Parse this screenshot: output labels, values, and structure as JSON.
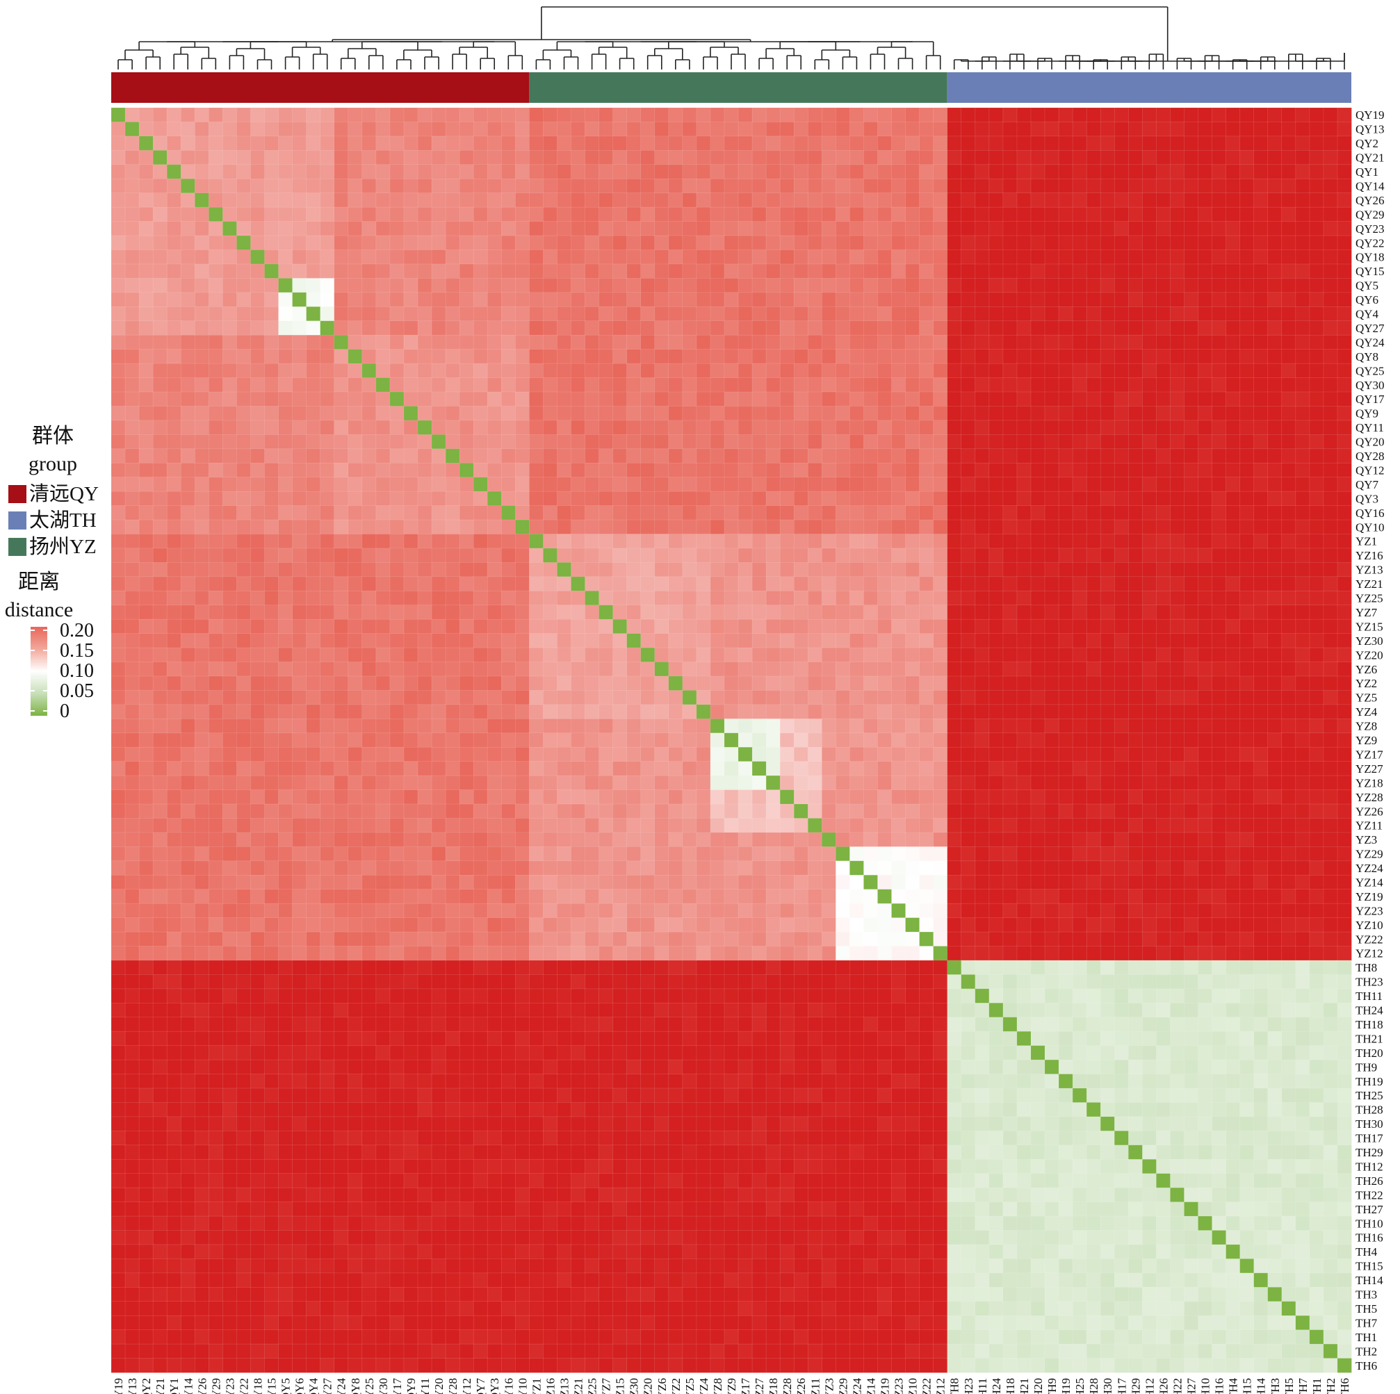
{
  "chart_data": {
    "type": "heatmap",
    "labels": [
      "QY19",
      "QY13",
      "QY2",
      "QY21",
      "QY1",
      "QY14",
      "QY26",
      "QY29",
      "QY23",
      "QY22",
      "QY18",
      "QY15",
      "QY5",
      "QY6",
      "QY4",
      "QY27",
      "QY24",
      "QY8",
      "QY25",
      "QY30",
      "QY17",
      "QY9",
      "QY11",
      "QY20",
      "QY28",
      "QY12",
      "QY7",
      "QY3",
      "QY16",
      "QY10",
      "YZ1",
      "YZ16",
      "YZ13",
      "YZ21",
      "YZ25",
      "YZ7",
      "YZ15",
      "YZ30",
      "YZ20",
      "YZ6",
      "YZ2",
      "YZ5",
      "YZ4",
      "YZ8",
      "YZ9",
      "YZ17",
      "YZ27",
      "YZ18",
      "YZ28",
      "YZ26",
      "YZ11",
      "YZ3",
      "YZ29",
      "YZ24",
      "YZ14",
      "YZ19",
      "YZ23",
      "YZ10",
      "YZ22",
      "YZ12",
      "TH8",
      "TH23",
      "TH11",
      "TH24",
      "TH18",
      "TH21",
      "TH20",
      "TH9",
      "TH19",
      "TH25",
      "TH28",
      "TH30",
      "TH17",
      "TH29",
      "TH12",
      "TH26",
      "TH22",
      "TH27",
      "TH10",
      "TH16",
      "TH4",
      "TH15",
      "TH14",
      "TH3",
      "TH5",
      "TH7",
      "TH1",
      "TH2",
      "TH6"
    ],
    "groups": [
      {
        "name": "清远QY",
        "color": "#a50f15",
        "count": 30
      },
      {
        "name": "扬州YZ",
        "color": "#45785a",
        "count": 30
      },
      {
        "name": "太湖TH",
        "color": "#6a7fb5",
        "count": 29
      }
    ],
    "values_summary": {
      "diagonal": 0,
      "QY_QY": 0.18,
      "YZ_YZ": 0.17,
      "TH_TH": 0.06,
      "QY_YZ": 0.19,
      "QY_TH": 0.25,
      "YZ_TH": 0.25,
      "QY5_QY6_QY4_QY27": 0.09,
      "YZ29_to_YZ12": 0.1,
      "YZ8_to_YZ18": 0.08
    },
    "colorbar": {
      "ticks": [
        0.2,
        0.15,
        0.1,
        0.05,
        0
      ],
      "tick_labels": [
        "0.20",
        "0.15",
        "0.10",
        "0.05",
        "0"
      ],
      "colors": {
        "low": "#7cb342",
        "mid": "#ffffff",
        "high": "#e8665a",
        "max": "#d7191c"
      }
    },
    "dendrogram": "hierarchical clustering of samples, top axis"
  },
  "legend": {
    "group_title_cn": "群体",
    "group_title_en": "group",
    "items": [
      {
        "label": "清远QY",
        "color": "#a50f15"
      },
      {
        "label": "太湖TH",
        "color": "#6a7fb5"
      },
      {
        "label": "扬州YZ",
        "color": "#45785a"
      }
    ],
    "distance_title_cn": "距离",
    "distance_title_en": "distance",
    "ticks": [
      "0.20",
      "0.15",
      "0.10",
      "0.05",
      "0"
    ]
  }
}
